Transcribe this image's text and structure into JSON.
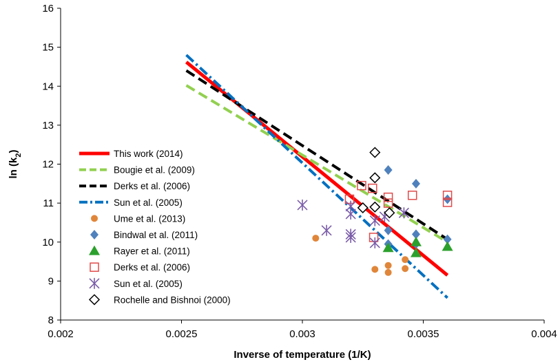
{
  "chart_data": {
    "type": "scatter",
    "xlabel": "Inverse of temperature (1/K)",
    "ylabel": "ln (k",
    "ylabel_sub": "2",
    "ylabel_close": ")",
    "xlim": [
      0.002,
      0.004
    ],
    "ylim": [
      8,
      16
    ],
    "xticks": [
      0.002,
      0.0025,
      0.003,
      0.0035,
      0.004
    ],
    "xtick_labels": [
      "0.002",
      "0.0025",
      "0.003",
      "0.0035",
      "0.004"
    ],
    "yticks": [
      8,
      9,
      10,
      11,
      12,
      13,
      14,
      15,
      16
    ],
    "ytick_labels": [
      "8",
      "9",
      "10",
      "11",
      "12",
      "13",
      "14",
      "15",
      "16"
    ],
    "grid": false,
    "legend_position": "bottom-left",
    "lines": [
      {
        "name": "This work (2014)",
        "color": "#ff0000",
        "dash": "solid",
        "x": [
          0.00252,
          0.0036
        ],
        "y": [
          14.62,
          9.15
        ]
      },
      {
        "name": "Bougie et al. (2009)",
        "color": "#92d050",
        "dash": "dash",
        "x": [
          0.00252,
          0.0036
        ],
        "y": [
          14.02,
          10.0
        ]
      },
      {
        "name": "Derks et al. (2006)",
        "color": "#000000",
        "dash": "dash",
        "x": [
          0.00252,
          0.0036
        ],
        "y": [
          14.4,
          10.07
        ]
      },
      {
        "name": "Sun et al. (2005)",
        "color": "#0070c0",
        "dash": "dashdot",
        "x": [
          0.00252,
          0.0036
        ],
        "y": [
          14.8,
          8.57
        ]
      }
    ],
    "scatter": [
      {
        "name": "Ume et al. (2013)",
        "marker": "circle",
        "color": "#e0863a",
        "points": [
          [
            0.003055,
            10.1
          ],
          [
            0.0033,
            9.3
          ],
          [
            0.003355,
            9.4
          ],
          [
            0.003355,
            9.22
          ],
          [
            0.003425,
            9.55
          ],
          [
            0.003425,
            9.32
          ]
        ]
      },
      {
        "name": "Bindwal et al. (2011)",
        "marker": "diamond",
        "color": "#4f81bd",
        "points": [
          [
            0.003355,
            11.85
          ],
          [
            0.003355,
            10.3
          ],
          [
            0.003355,
            9.95
          ],
          [
            0.00347,
            11.5
          ],
          [
            0.00347,
            10.2
          ],
          [
            0.00347,
            9.95
          ],
          [
            0.0036,
            11.1
          ],
          [
            0.0036,
            10.07
          ]
        ]
      },
      {
        "name": "Rayer et al. (2011)",
        "marker": "triangle",
        "color": "#2ca02c",
        "points": [
          [
            0.003355,
            9.85
          ],
          [
            0.00347,
            9.72
          ],
          [
            0.00347,
            10.0
          ],
          [
            0.0036,
            9.88
          ]
        ]
      },
      {
        "name": "Derks et al. (2006)",
        "marker": "square",
        "color": "#e04a4a",
        "points": [
          [
            0.003195,
            11.1
          ],
          [
            0.003245,
            11.45
          ],
          [
            0.00329,
            11.38
          ],
          [
            0.003295,
            10.12
          ],
          [
            0.003355,
            11.15
          ],
          [
            0.003355,
            11.0
          ],
          [
            0.003455,
            11.2
          ],
          [
            0.0036,
            11.2
          ],
          [
            0.0036,
            11.02
          ]
        ]
      },
      {
        "name": "Sun et al. (2005)",
        "marker": "asterisk",
        "color": "#7a5ca8",
        "points": [
          [
            0.003,
            10.95
          ],
          [
            0.0031,
            10.3
          ],
          [
            0.0032,
            10.92
          ],
          [
            0.0032,
            10.72
          ],
          [
            0.0032,
            10.2
          ],
          [
            0.0032,
            10.12
          ],
          [
            0.0033,
            10.55
          ],
          [
            0.0033,
            9.98
          ],
          [
            0.00334,
            10.65
          ],
          [
            0.00342,
            10.75
          ]
        ]
      },
      {
        "name": "Rochelle and Bishnoi (2000)",
        "marker": "open-diamond",
        "color": "#000000",
        "points": [
          [
            0.00325,
            10.88
          ],
          [
            0.0033,
            12.3
          ],
          [
            0.0033,
            11.65
          ],
          [
            0.0033,
            10.9
          ],
          [
            0.00336,
            10.75
          ]
        ]
      }
    ]
  }
}
